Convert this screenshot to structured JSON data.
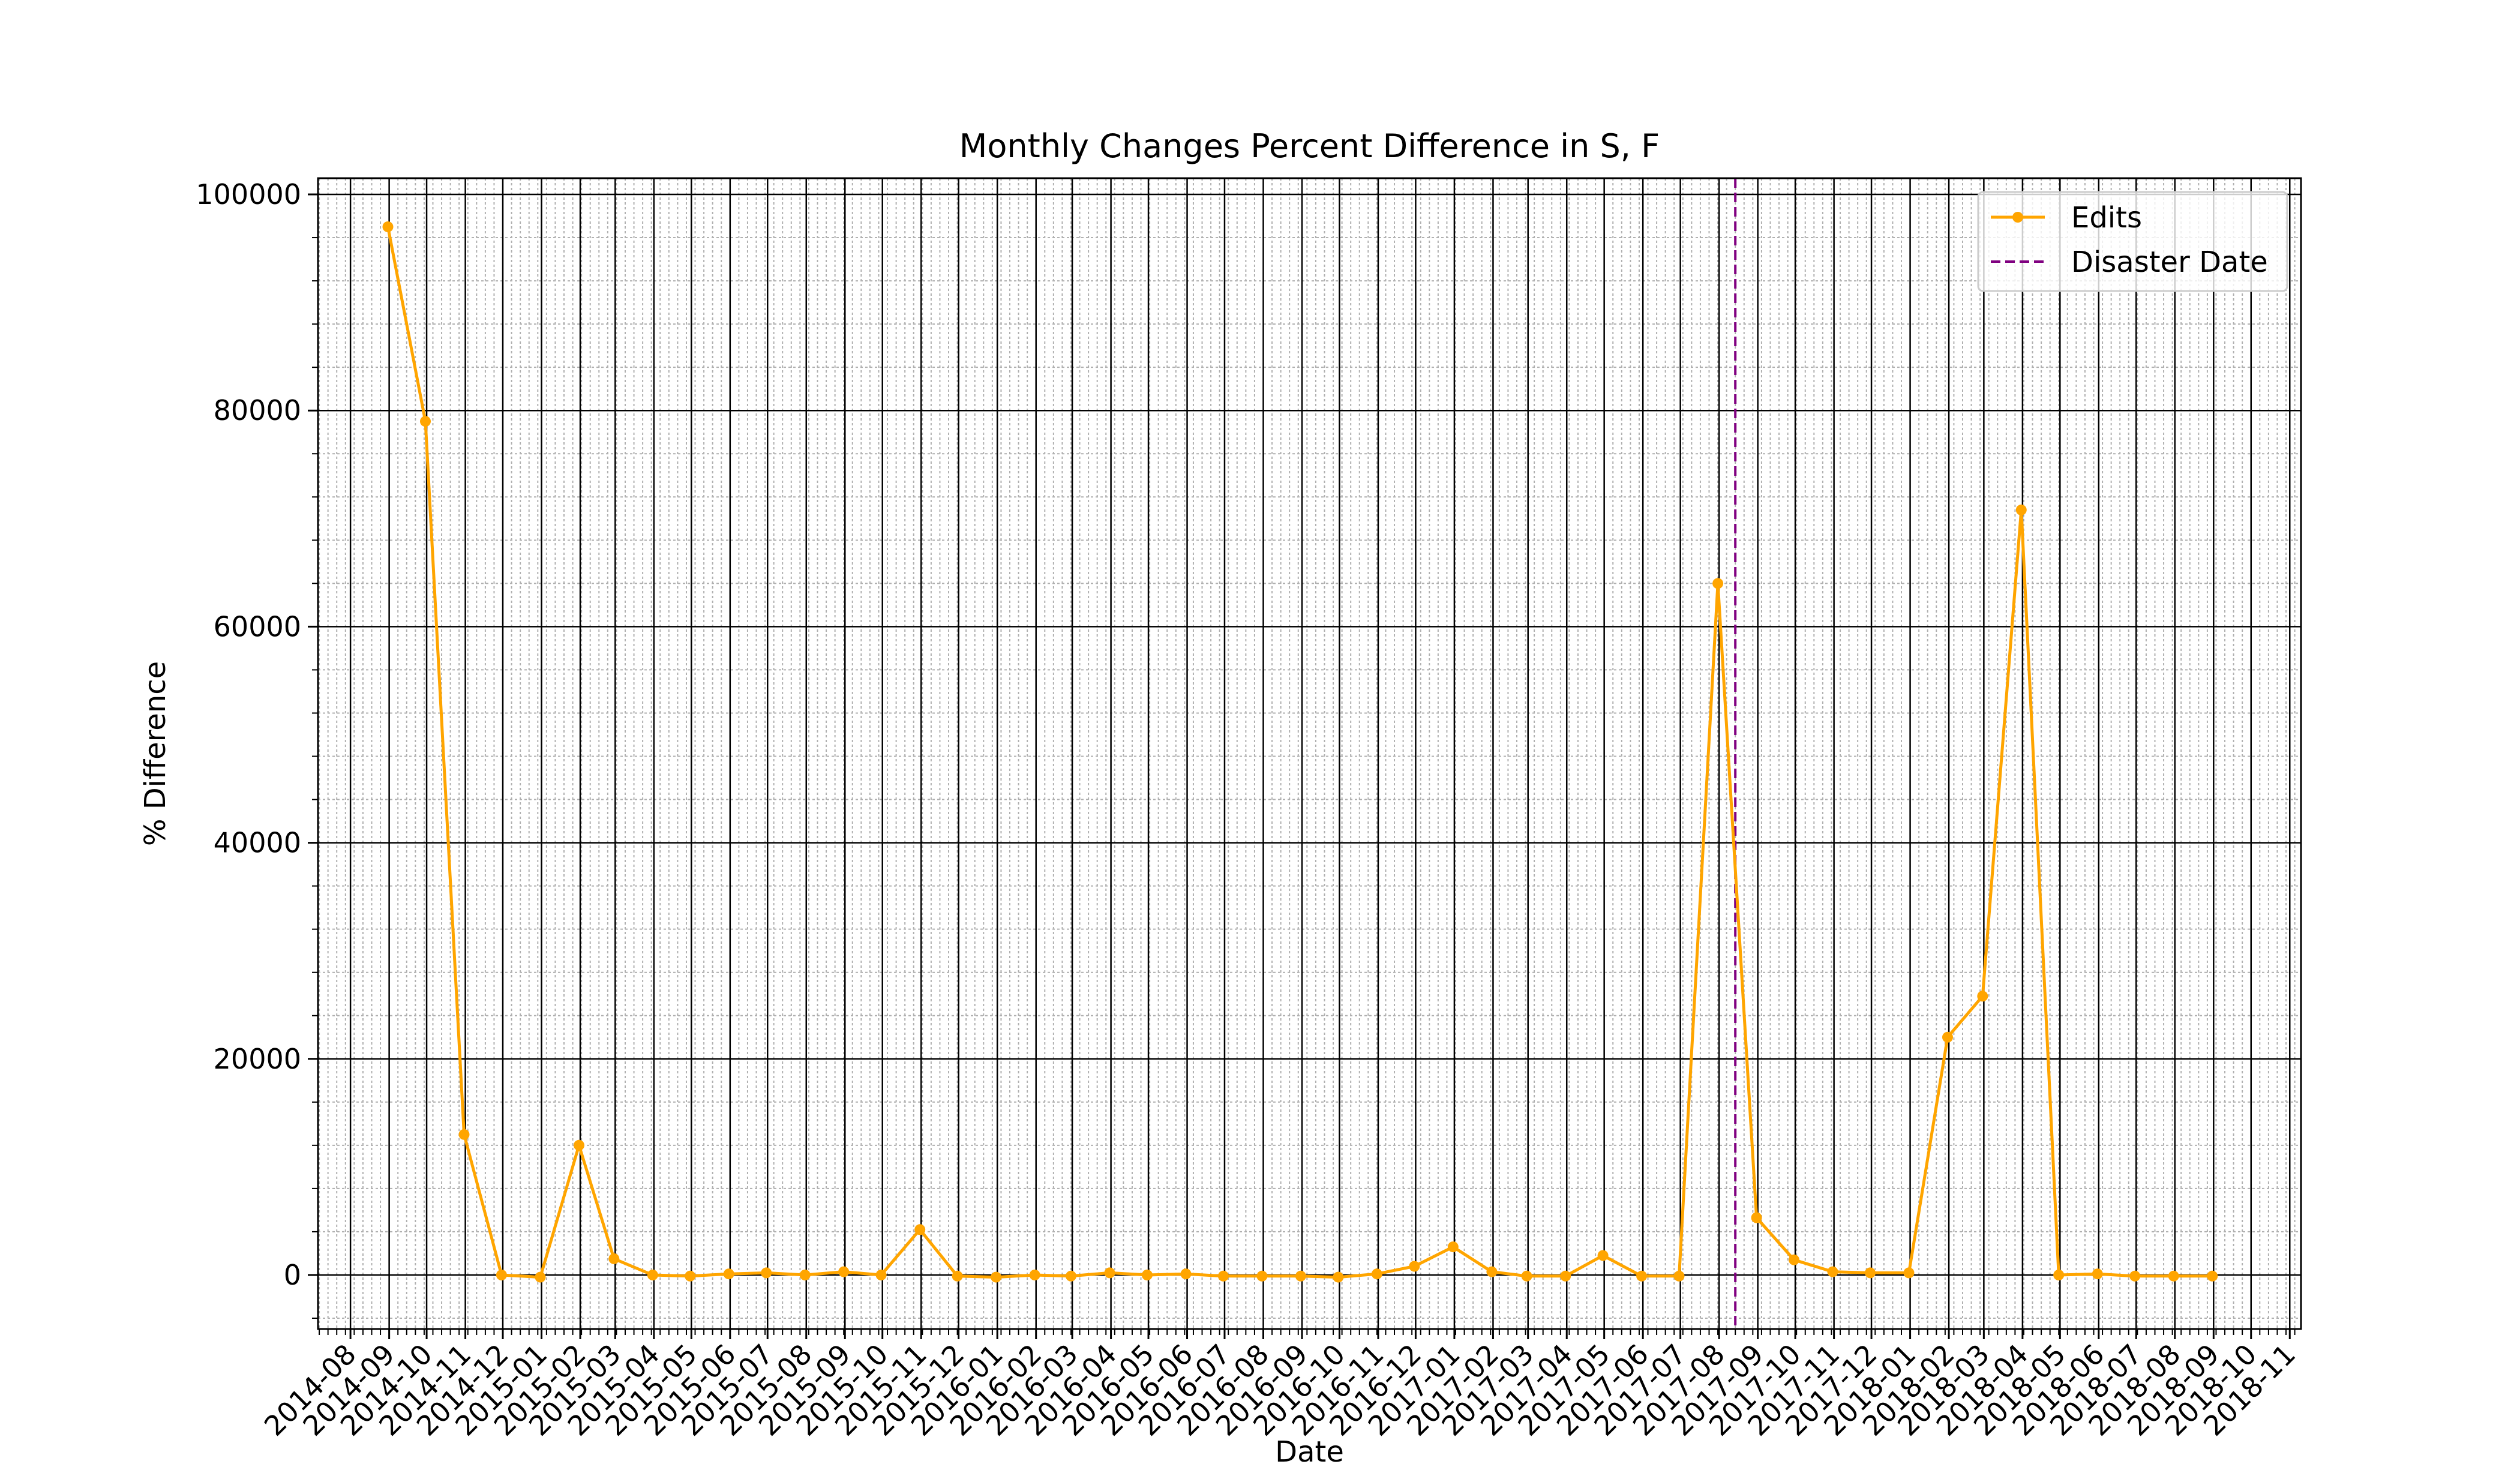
{
  "chart_data": {
    "type": "line",
    "title": "Monthly Changes Percent Difference in S, F",
    "xlabel": "Date",
    "ylabel": "% Difference",
    "ylim": [
      -5000,
      101500
    ],
    "xlim": [
      "2014-07-06",
      "2018-11-10"
    ],
    "y_ticks": [
      0,
      20000,
      40000,
      60000,
      80000,
      100000
    ],
    "y_tick_labels": [
      "0",
      "20000",
      "40000",
      "60000",
      "80000",
      "100000"
    ],
    "x_ticks": [
      "2014-08-01",
      "2014-09-01",
      "2014-10-01",
      "2014-11-01",
      "2014-12-01",
      "2015-01-01",
      "2015-02-01",
      "2015-03-01",
      "2015-04-01",
      "2015-05-01",
      "2015-06-01",
      "2015-07-01",
      "2015-08-01",
      "2015-09-01",
      "2015-10-01",
      "2015-11-01",
      "2015-12-01",
      "2016-01-01",
      "2016-02-01",
      "2016-03-01",
      "2016-04-01",
      "2016-05-01",
      "2016-06-01",
      "2016-07-01",
      "2016-08-01",
      "2016-09-01",
      "2016-10-01",
      "2016-11-01",
      "2016-12-01",
      "2017-01-01",
      "2017-02-01",
      "2017-03-01",
      "2017-04-01",
      "2017-05-01",
      "2017-06-01",
      "2017-07-01",
      "2017-08-01",
      "2017-09-01",
      "2017-10-01",
      "2017-11-01",
      "2017-12-01",
      "2018-01-01",
      "2018-02-01",
      "2018-03-01",
      "2018-04-01",
      "2018-05-01",
      "2018-06-01",
      "2018-07-01",
      "2018-08-01",
      "2018-09-01",
      "2018-10-01",
      "2018-11-01"
    ],
    "x_tick_labels": [
      "2014-08",
      "2014-09",
      "2014-10",
      "2014-11",
      "2014-12",
      "2015-01",
      "2015-02",
      "2015-03",
      "2015-04",
      "2015-05",
      "2015-06",
      "2015-07",
      "2015-08",
      "2015-09",
      "2015-10",
      "2015-11",
      "2015-12",
      "2016-01",
      "2016-02",
      "2016-03",
      "2016-04",
      "2016-05",
      "2016-06",
      "2016-07",
      "2016-08",
      "2016-09",
      "2016-10",
      "2016-11",
      "2016-12",
      "2017-01",
      "2017-02",
      "2017-03",
      "2017-04",
      "2017-05",
      "2017-06",
      "2017-07",
      "2017-08",
      "2017-09",
      "2017-10",
      "2017-11",
      "2017-12",
      "2018-01",
      "2018-02",
      "2018-03",
      "2018-04",
      "2018-05",
      "2018-06",
      "2018-07",
      "2018-08",
      "2018-09",
      "2018-10",
      "2018-11"
    ],
    "grid": true,
    "legend_position": "top-right",
    "series": [
      {
        "name": "Edits",
        "color": "#FFA500",
        "marker": "circle",
        "x": [
          "2014-08-31",
          "2014-09-30",
          "2014-10-31",
          "2014-11-30",
          "2014-12-31",
          "2015-01-31",
          "2015-02-28",
          "2015-03-31",
          "2015-04-30",
          "2015-05-31",
          "2015-06-30",
          "2015-07-31",
          "2015-08-31",
          "2015-09-30",
          "2015-10-31",
          "2015-11-30",
          "2015-12-31",
          "2016-01-31",
          "2016-02-29",
          "2016-03-31",
          "2016-04-30",
          "2016-05-31",
          "2016-06-30",
          "2016-07-31",
          "2016-08-31",
          "2016-09-30",
          "2016-10-31",
          "2016-11-30",
          "2016-12-31",
          "2017-01-31",
          "2017-02-28",
          "2017-03-31",
          "2017-04-30",
          "2017-05-31",
          "2017-06-30",
          "2017-07-31",
          "2017-08-31",
          "2017-09-30",
          "2017-10-31",
          "2017-11-30",
          "2017-12-31",
          "2018-01-31",
          "2018-02-28",
          "2018-03-31",
          "2018-04-30",
          "2018-05-31",
          "2018-06-30",
          "2018-07-31",
          "2018-08-31"
        ],
        "y": [
          97000,
          79000,
          13000,
          0,
          -200,
          12000,
          1500,
          0,
          -100,
          100,
          200,
          0,
          300,
          0,
          4200,
          -100,
          -200,
          0,
          -100,
          200,
          0,
          100,
          -100,
          -100,
          -100,
          -200,
          100,
          800,
          2600,
          300,
          -100,
          -100,
          1800,
          -100,
          -100,
          64000,
          5300,
          1400,
          300,
          200,
          200,
          22000,
          25800,
          70800,
          0,
          100,
          -100,
          -100,
          -100
        ]
      }
    ],
    "vlines": [
      {
        "name": "Disaster Date",
        "x": "2017-08-14",
        "color": "#800080",
        "style": "dashed"
      }
    ]
  }
}
